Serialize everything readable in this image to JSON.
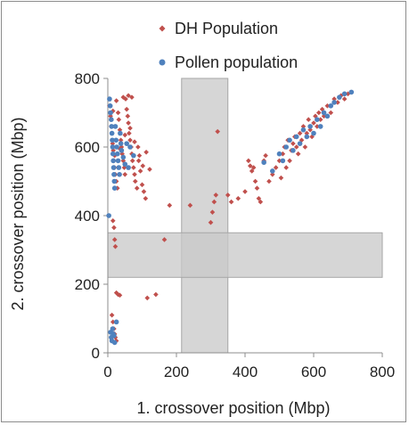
{
  "chart_data": {
    "type": "scatter",
    "xlabel": "1. crossover position (Mbp)",
    "ylabel": "2. crossover position (Mbp)",
    "xlim": [
      0,
      800
    ],
    "ylim": [
      0,
      800
    ],
    "x_ticks": [
      0,
      200,
      400,
      600,
      800
    ],
    "y_ticks": [
      0,
      200,
      400,
      600,
      800
    ],
    "grid": false,
    "legend_position": "top-center",
    "shaded_regions": [
      {
        "axis": "x",
        "from": 215,
        "to": 350,
        "color": "#c8c8c8"
      },
      {
        "axis": "y",
        "from": 220,
        "to": 350,
        "color": "#c8c8c8"
      }
    ],
    "series": [
      {
        "name": "DH Population",
        "marker": "diamond",
        "color": "#c0504d",
        "points": [
          [
            5,
            720
          ],
          [
            8,
            690
          ],
          [
            10,
            660
          ],
          [
            12,
            640
          ],
          [
            14,
            610
          ],
          [
            16,
            590
          ],
          [
            18,
            560
          ],
          [
            20,
            540
          ],
          [
            22,
            520
          ],
          [
            25,
            500
          ],
          [
            28,
            480
          ],
          [
            30,
            700
          ],
          [
            32,
            680
          ],
          [
            35,
            650
          ],
          [
            38,
            620
          ],
          [
            40,
            600
          ],
          [
            42,
            580
          ],
          [
            45,
            560
          ],
          [
            48,
            540
          ],
          [
            50,
            520
          ],
          [
            52,
            740
          ],
          [
            55,
            710
          ],
          [
            58,
            690
          ],
          [
            60,
            670
          ],
          [
            62,
            640
          ],
          [
            65,
            620
          ],
          [
            68,
            600
          ],
          [
            70,
            580
          ],
          [
            72,
            560
          ],
          [
            75,
            540
          ],
          [
            78,
            520
          ],
          [
            80,
            500
          ],
          [
            85,
            480
          ],
          [
            88,
            600
          ],
          [
            90,
            560
          ],
          [
            95,
            530
          ],
          [
            100,
            490
          ],
          [
            105,
            470
          ],
          [
            110,
            450
          ],
          [
            60,
            750
          ],
          [
            45,
            745
          ],
          [
            70,
            745
          ],
          [
            25,
            735
          ],
          [
            15,
            705
          ],
          [
            20,
            575
          ],
          [
            35,
            595
          ],
          [
            50,
            635
          ],
          [
            65,
            655
          ],
          [
            78,
            615
          ],
          [
            92,
            575
          ],
          [
            102,
            545
          ],
          [
            112,
            585
          ],
          [
            122,
            535
          ],
          [
            15,
            385
          ],
          [
            18,
            365
          ],
          [
            20,
            330
          ],
          [
            22,
            310
          ],
          [
            25,
            175
          ],
          [
            30,
            170
          ],
          [
            35,
            168
          ],
          [
            115,
            160
          ],
          [
            140,
            170
          ],
          [
            12,
            110
          ],
          [
            15,
            90
          ],
          [
            18,
            70
          ],
          [
            20,
            55
          ],
          [
            22,
            45
          ],
          [
            25,
            35
          ],
          [
            165,
            330
          ],
          [
            180,
            430
          ],
          [
            240,
            430
          ],
          [
            300,
            380
          ],
          [
            305,
            410
          ],
          [
            310,
            440
          ],
          [
            315,
            460
          ],
          [
            320,
            645
          ],
          [
            350,
            460
          ],
          [
            360,
            440
          ],
          [
            380,
            450
          ],
          [
            400,
            470
          ],
          [
            410,
            560
          ],
          [
            415,
            545
          ],
          [
            420,
            530
          ],
          [
            425,
            540
          ],
          [
            430,
            500
          ],
          [
            435,
            480
          ],
          [
            440,
            450
          ],
          [
            445,
            440
          ],
          [
            455,
            560
          ],
          [
            460,
            575
          ],
          [
            470,
            500
          ],
          [
            480,
            520
          ],
          [
            490,
            540
          ],
          [
            500,
            560
          ],
          [
            505,
            510
          ],
          [
            510,
            580
          ],
          [
            515,
            600
          ],
          [
            520,
            540
          ],
          [
            525,
            620
          ],
          [
            530,
            560
          ],
          [
            535,
            590
          ],
          [
            540,
            610
          ],
          [
            545,
            630
          ],
          [
            550,
            600
          ],
          [
            555,
            580
          ],
          [
            560,
            640
          ],
          [
            565,
            620
          ],
          [
            570,
            660
          ],
          [
            575,
            600
          ],
          [
            580,
            640
          ],
          [
            585,
            680
          ],
          [
            590,
            650
          ],
          [
            595,
            630
          ],
          [
            600,
            670
          ],
          [
            605,
            690
          ],
          [
            610,
            660
          ],
          [
            615,
            700
          ],
          [
            620,
            680
          ],
          [
            625,
            710
          ],
          [
            630,
            690
          ],
          [
            640,
            720
          ],
          [
            650,
            700
          ],
          [
            660,
            740
          ],
          [
            670,
            730
          ],
          [
            680,
            750
          ],
          [
            690,
            740
          ],
          [
            700,
            755
          ]
        ]
      },
      {
        "name": "Pollen population",
        "marker": "circle",
        "color": "#4f81bd",
        "points": [
          [
            3,
            400
          ],
          [
            5,
            740
          ],
          [
            7,
            720
          ],
          [
            8,
            700
          ],
          [
            10,
            680
          ],
          [
            11,
            660
          ],
          [
            12,
            640
          ],
          [
            13,
            620
          ],
          [
            14,
            600
          ],
          [
            15,
            580
          ],
          [
            16,
            560
          ],
          [
            17,
            540
          ],
          [
            18,
            520
          ],
          [
            19,
            500
          ],
          [
            20,
            480
          ],
          [
            22,
            660
          ],
          [
            24,
            620
          ],
          [
            26,
            600
          ],
          [
            28,
            580
          ],
          [
            30,
            560
          ],
          [
            32,
            540
          ],
          [
            34,
            520
          ],
          [
            36,
            640
          ],
          [
            38,
            610
          ],
          [
            40,
            590
          ],
          [
            45,
            570
          ],
          [
            50,
            550
          ],
          [
            55,
            610
          ],
          [
            60,
            540
          ],
          [
            65,
            600
          ],
          [
            75,
            575
          ],
          [
            8,
            60
          ],
          [
            10,
            45
          ],
          [
            12,
            35
          ],
          [
            14,
            70
          ],
          [
            16,
            55
          ],
          [
            18,
            50
          ],
          [
            20,
            30
          ],
          [
            25,
            90
          ],
          [
            455,
            555
          ],
          [
            480,
            530
          ],
          [
            500,
            580
          ],
          [
            510,
            560
          ],
          [
            520,
            600
          ],
          [
            530,
            620
          ],
          [
            540,
            590
          ],
          [
            550,
            630
          ],
          [
            560,
            610
          ],
          [
            570,
            650
          ],
          [
            580,
            630
          ],
          [
            590,
            660
          ],
          [
            600,
            640
          ],
          [
            610,
            680
          ],
          [
            620,
            660
          ],
          [
            630,
            700
          ],
          [
            640,
            690
          ],
          [
            650,
            720
          ],
          [
            660,
            730
          ],
          [
            675,
            745
          ],
          [
            690,
            755
          ],
          [
            710,
            760
          ]
        ]
      }
    ]
  }
}
